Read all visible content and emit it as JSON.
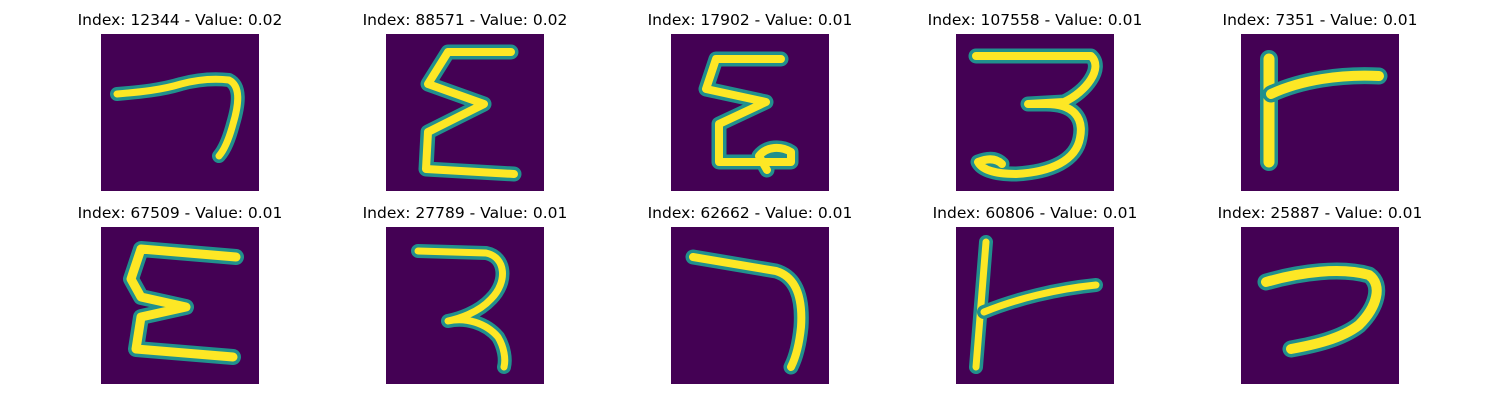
{
  "panels": [
    {
      "title": "Index: 12344 - Value: 0.02",
      "shape": "digit-seven-like"
    },
    {
      "title": "Index: 88571 - Value: 0.02",
      "shape": "sigma-like"
    },
    {
      "title": "Index: 17902 - Value: 0.01",
      "shape": "sigma-like"
    },
    {
      "title": "Index: 107558 - Value: 0.01",
      "shape": "reversed-e-like"
    },
    {
      "title": "Index: 7351 - Value: 0.01",
      "shape": "t-like"
    },
    {
      "title": "Index: 67509 - Value: 0.01",
      "shape": "sigma-like"
    },
    {
      "title": "Index: 27789 - Value: 0.01",
      "shape": "reversed-e-like"
    },
    {
      "title": "Index: 62662 - Value: 0.01",
      "shape": "digit-seven-like"
    },
    {
      "title": "Index: 60806 - Value: 0.01",
      "shape": "t-like"
    },
    {
      "title": "Index: 25887 - Value: 0.01",
      "shape": "digit-seven-like"
    }
  ],
  "colors": {
    "image_background": "#440154",
    "stroke_edge": "#21908d",
    "stroke_core": "#fde725"
  }
}
